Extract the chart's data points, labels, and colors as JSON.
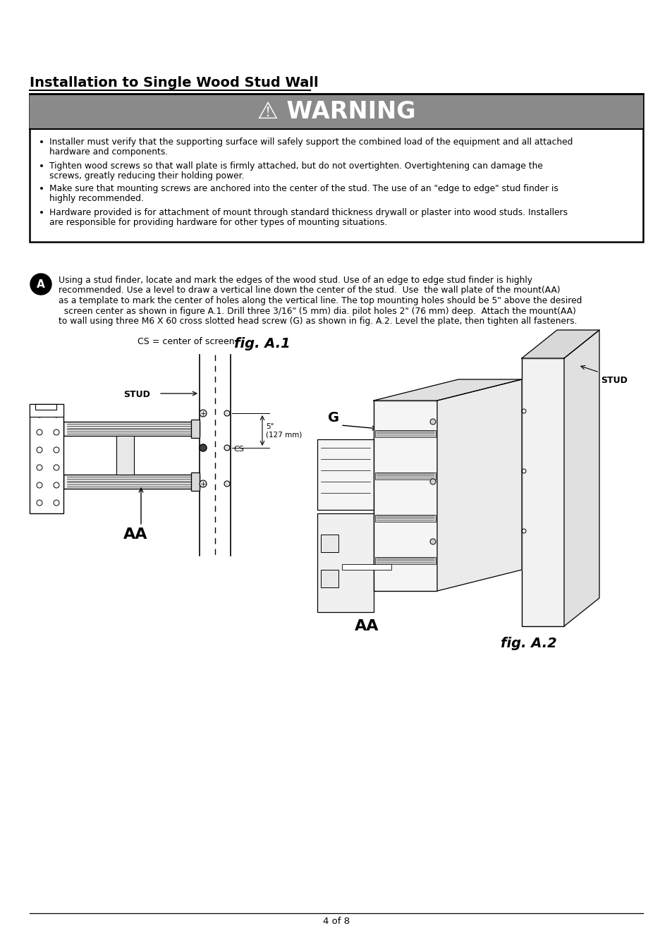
{
  "title": "Installation to Single Wood Stud Wall",
  "warning_header": "⚠ WARNING",
  "bullet1": [
    "Installer must verify that the supporting surface will safely support the combined load of the equipment and all attached",
    "hardware and components."
  ],
  "bullet2": [
    "Tighten wood screws so that wall plate is firmly attached, but do not overtighten. Overtightening can damage the",
    "screws, greatly reducing their holding power."
  ],
  "bullet3": [
    "Make sure that mounting screws are anchored into the center of the stud. The use of an \"edge to edge\" stud finder is",
    "highly recommended."
  ],
  "bullet4": [
    "Hardware provided is for attachment of mount through standard thickness drywall or plaster into wood studs. Installers",
    "are responsible for providing hardware for other types of mounting situations."
  ],
  "step_a_lines": [
    "Using a stud finder, locate and mark the edges of the wood stud. Use of an edge to edge stud finder is highly",
    "recommended. Use a level to draw a vertical line down the center of the stud.  Use  the wall plate of the mount(AA)",
    "as a template to mark the center of holes along the vertical line. The top mounting holes should be 5\" above the desired",
    "  screen center as shown in figure A.1. Drill three 3/16\" (5 mm) dia. pilot holes 2\" (76 mm) deep.  Attach the mount(AA)",
    "to wall using three M6 X 60 cross slotted head screw (G) as shown in fig. A.2. Level the plate, then tighten all fasteners."
  ],
  "cs_label": "CS = center of screen",
  "fig_a1": "fig. A.1",
  "fig_a2": "fig. A.2",
  "stud_label": "STUD",
  "aa_label": "AA",
  "g_label": "G",
  "cs_mark": "CS",
  "dim_label": "5\"\n(127 mm)",
  "page": "4 of 8",
  "bg": "#ffffff",
  "warn_bg": "#8a8a8a",
  "black": "#000000",
  "white": "#ffffff"
}
